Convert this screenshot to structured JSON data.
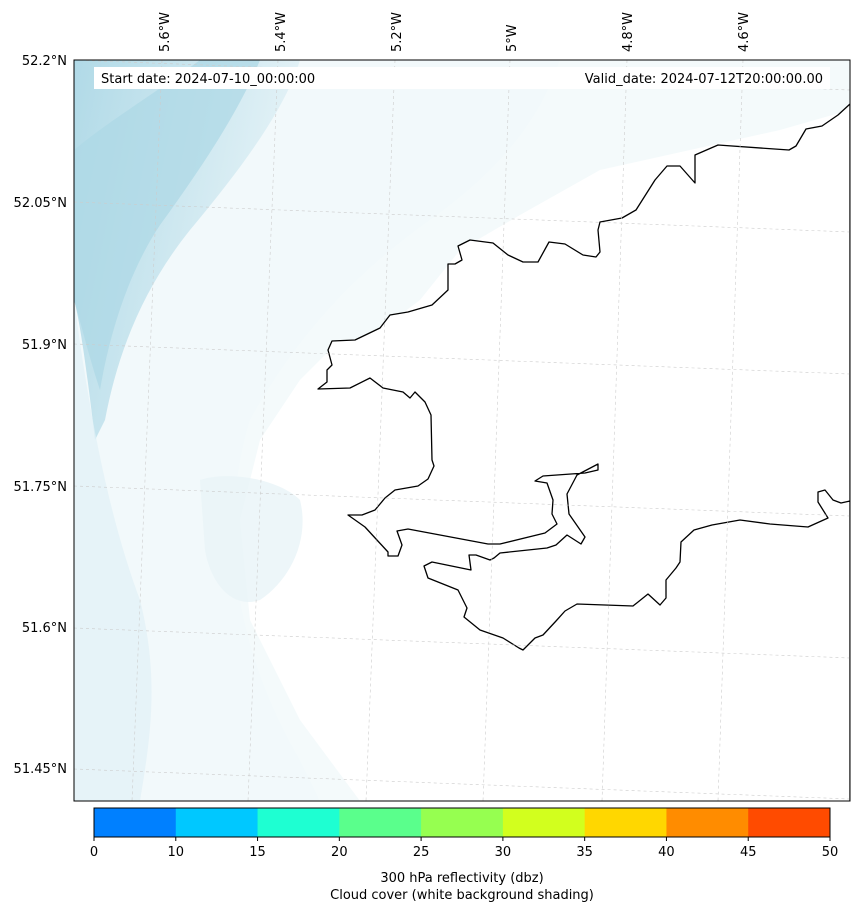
{
  "map": {
    "start_date": "Start date: 2024-07-10_00:00:00",
    "valid_date": "Valid_date: 2024-07-12T20:00:00.00",
    "lon_labels": [
      "5.6°W",
      "5.4°W",
      "5.2°W",
      "5°W",
      "4.8°W",
      "4.6°W"
    ],
    "lat_labels": [
      "52.2°N",
      "52.05°N",
      "51.9°N",
      "51.75°N",
      "51.6°N",
      "51.45°N"
    ],
    "land_color": "#ffffff",
    "cloud_color": "#add8e6",
    "coastline_color": "#000000"
  },
  "colorbar": {
    "ticks": [
      "0",
      "10",
      "15",
      "20",
      "25",
      "30",
      "35",
      "40",
      "45",
      "50"
    ],
    "colors": [
      "#0080ff",
      "#00c8ff",
      "#1effd2",
      "#5aff8c",
      "#96ff50",
      "#d2ff1e",
      "#ffd700",
      "#ff8c00",
      "#ff4b00"
    ],
    "label_line1": "300 hPa reflectivity (dbz)",
    "label_line2": "Cloud cover (white background shading)"
  }
}
